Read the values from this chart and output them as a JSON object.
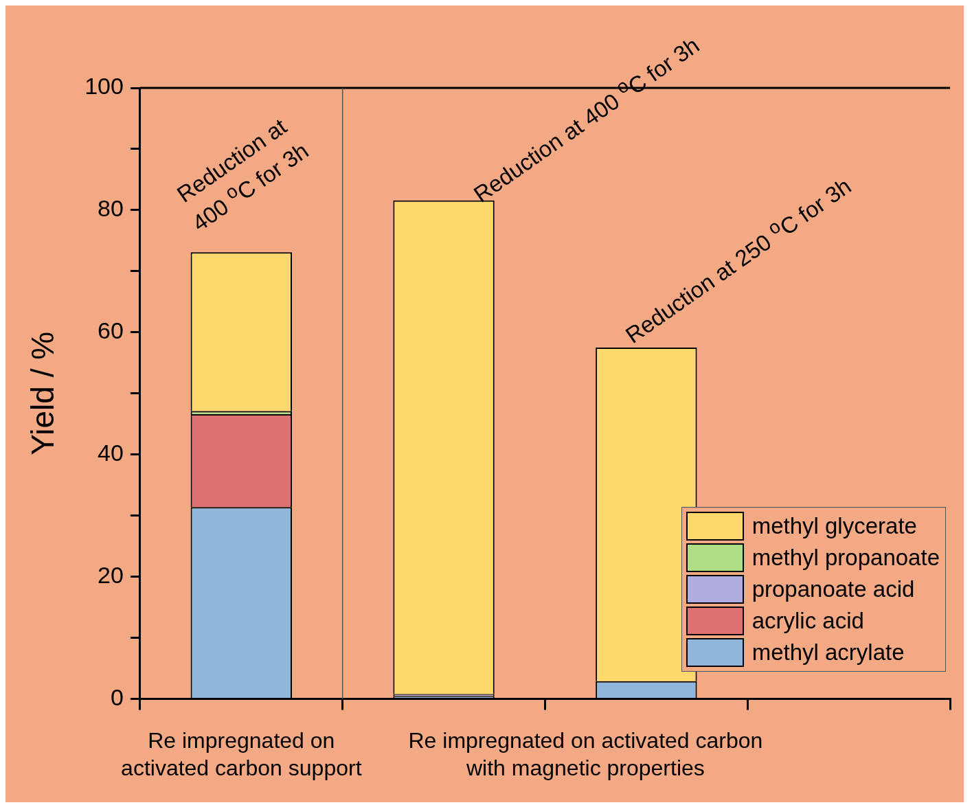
{
  "chart_data": {
    "type": "bar",
    "ylabel": "Yield / %",
    "categories": [
      null,
      null,
      null,
      null
    ],
    "stacked": true,
    "series": [
      {
        "name": "methyl acrylate",
        "color": "#90b6dc",
        "values": [
          31.4,
          0.5,
          2.9,
          null
        ]
      },
      {
        "name": "acrylic acid",
        "color": "#dd7070",
        "values": [
          15.2,
          0,
          0,
          null
        ]
      },
      {
        "name": "propanoate acid",
        "color": "#b0aee0",
        "values": [
          0,
          0.3,
          0,
          null
        ]
      },
      {
        "name": "methyl propanoate",
        "color": "#b0de88",
        "values": [
          0.5,
          0,
          0,
          null
        ]
      },
      {
        "name": "methyl glycerate",
        "color": "#ffd86e",
        "values": [
          26.0,
          80.8,
          54.6,
          null
        ]
      }
    ],
    "ylim": [
      0,
      100
    ],
    "yticks": [
      0,
      {
        "value": 10,
        "label": null
      },
      20,
      {
        "value": 30,
        "label": null
      },
      40,
      {
        "value": 50,
        "label": null
      },
      60,
      {
        "value": 70,
        "label": null
      },
      80,
      {
        "value": 90,
        "label": null
      },
      100
    ],
    "grid": false,
    "legend": "bottom right",
    "tick_labels": "y",
    "annotations": [
      "Reduction at\n400 $^{o}$C for 3h",
      "Reduction at 400 $^{o}$C for 3h",
      "Reduction at 250 $^{o}$C for 3h",
      "Re impregnated on\nactivated carbon support",
      "Re impregnated on activated carbon\nwith magnetic properties"
    ]
  }
}
